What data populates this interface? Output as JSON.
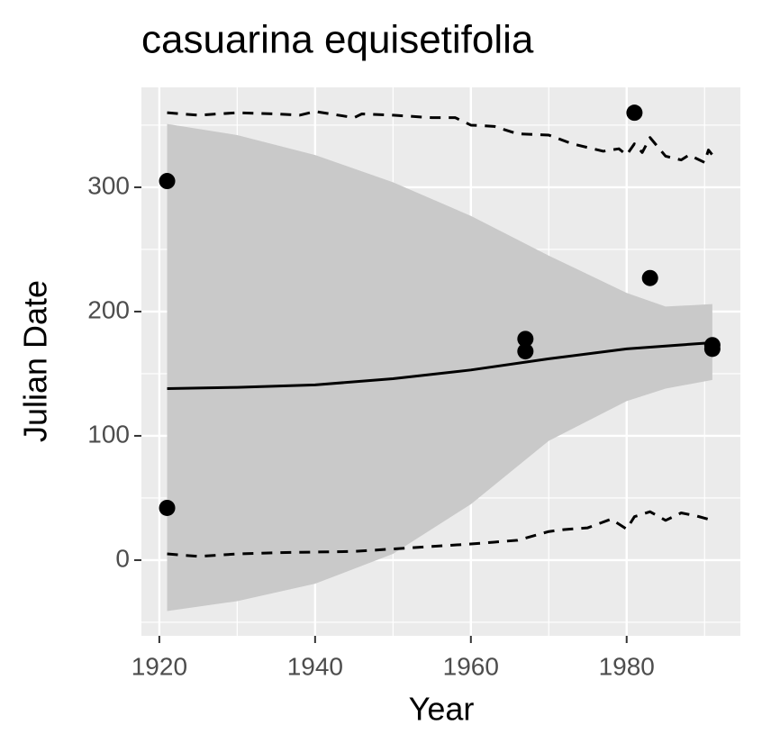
{
  "chart_data": {
    "type": "scatter",
    "title": "casuarina equisetifolia",
    "x_label": "Year",
    "y_label": "Julian Date",
    "xlim": [
      1917.7,
      1994.6
    ],
    "ylim": [
      -60.9,
      380.4
    ],
    "xticks": [
      1920,
      1940,
      1960,
      1980
    ],
    "yticks": [
      0,
      100,
      200,
      300
    ],
    "grid": true,
    "points": {
      "color": "#000000",
      "x": [
        1921,
        1921,
        1967,
        1967,
        1981,
        1983,
        1991,
        1991
      ],
      "y": [
        305,
        42,
        178,
        168,
        360,
        227,
        173,
        170
      ]
    },
    "smooth": {
      "color": "#000000",
      "x": [
        1921,
        1930,
        1940,
        1950,
        1960,
        1970,
        1980,
        1991
      ],
      "y": [
        138,
        139,
        141,
        146,
        153,
        162,
        170,
        175
      ]
    },
    "ribbon": {
      "color": "#c9c9c9",
      "x": [
        1921,
        1930,
        1940,
        1950,
        1960,
        1970,
        1980,
        1985,
        1991
      ],
      "upper": [
        351,
        342,
        326,
        304,
        277,
        245,
        215,
        204,
        206
      ],
      "lower": [
        -41,
        -33,
        -19,
        5,
        45,
        96,
        128,
        138,
        145
      ]
    },
    "quantile_upper": {
      "color": "#000000",
      "x": [
        1921,
        1925,
        1930,
        1935,
        1938,
        1940,
        1945,
        1946,
        1950,
        1955,
        1958,
        1960,
        1963,
        1966,
        1970,
        1973,
        1977,
        1979,
        1980,
        1981,
        1982,
        1983,
        1985,
        1987,
        1988,
        1990,
        1990.5,
        1991
      ],
      "y": [
        360,
        358,
        360,
        359,
        358,
        361,
        356,
        359,
        358,
        356,
        356,
        350,
        349,
        343,
        342,
        335,
        329,
        331,
        326,
        335,
        328,
        340,
        325,
        322,
        326,
        320,
        330,
        326
      ]
    },
    "quantile_lower": {
      "color": "#000000",
      "x": [
        1921,
        1925,
        1930,
        1935,
        1940,
        1945,
        1950,
        1955,
        1960,
        1963,
        1966,
        1970,
        1972,
        1975,
        1978,
        1980,
        1981,
        1983,
        1985,
        1987,
        1989,
        1991
      ],
      "y": [
        5,
        3,
        5,
        6,
        6.5,
        7,
        9,
        11,
        13,
        14.5,
        16,
        23,
        24.6,
        26,
        33,
        25,
        35,
        39,
        32,
        38,
        35.5,
        32
      ]
    }
  }
}
